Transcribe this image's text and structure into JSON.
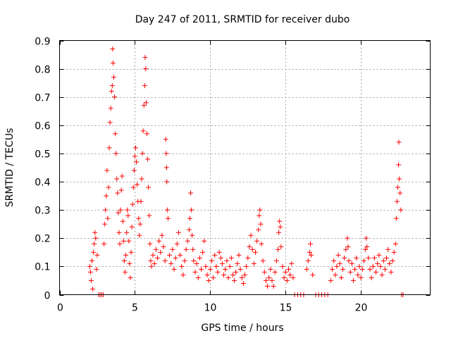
{
  "chart_data": {
    "type": "scatter",
    "title": "Day 247 of 2011, SRMTID for receiver dubo",
    "xlabel": "GPS time / hours",
    "ylabel": "SRMTID / TECUs",
    "xlim": [
      0,
      24.6
    ],
    "ylim": [
      0,
      0.9
    ],
    "x_ticks": [
      0,
      5,
      10,
      15,
      20
    ],
    "x_tick_labels": [
      "0",
      "5",
      "10",
      "15",
      "20"
    ],
    "y_ticks": [
      0,
      0.1,
      0.2,
      0.3,
      0.4,
      0.5,
      0.6,
      0.7,
      0.8,
      0.9
    ],
    "y_tick_labels": [
      "0",
      "0.1",
      "0.2",
      "0.3",
      "0.4",
      "0.5",
      "0.6",
      "0.7",
      "0.8",
      "0.9"
    ],
    "grid": true,
    "marker": "+",
    "color": "#ff0000",
    "series": [
      {
        "name": "SRMTID",
        "points": [
          [
            2.0,
            0.1
          ],
          [
            2.05,
            0.08
          ],
          [
            2.1,
            0.05
          ],
          [
            2.15,
            0.12
          ],
          [
            2.2,
            0.02
          ],
          [
            2.25,
            0.15
          ],
          [
            2.3,
            0.18
          ],
          [
            2.35,
            0.22
          ],
          [
            2.4,
            0.2
          ],
          [
            2.45,
            0.09
          ],
          [
            2.5,
            0.14
          ],
          [
            2.6,
            0.0
          ],
          [
            2.7,
            0.0
          ],
          [
            2.8,
            0.0
          ],
          [
            2.9,
            0.0
          ],
          [
            2.95,
            0.18
          ],
          [
            3.0,
            0.25
          ],
          [
            3.05,
            0.3
          ],
          [
            3.1,
            0.35
          ],
          [
            3.15,
            0.44
          ],
          [
            3.2,
            0.27
          ],
          [
            3.25,
            0.38
          ],
          [
            3.3,
            0.52
          ],
          [
            3.35,
            0.61
          ],
          [
            3.4,
            0.66
          ],
          [
            3.45,
            0.72
          ],
          [
            3.5,
            0.74
          ],
          [
            3.52,
            0.87
          ],
          [
            3.55,
            0.82
          ],
          [
            3.6,
            0.77
          ],
          [
            3.65,
            0.7
          ],
          [
            3.7,
            0.57
          ],
          [
            3.75,
            0.5
          ],
          [
            3.8,
            0.41
          ],
          [
            3.85,
            0.36
          ],
          [
            3.9,
            0.29
          ],
          [
            3.95,
            0.22
          ],
          [
            4.0,
            0.18
          ],
          [
            4.05,
            0.3
          ],
          [
            4.1,
            0.37
          ],
          [
            4.15,
            0.42
          ],
          [
            4.2,
            0.26
          ],
          [
            4.25,
            0.19
          ],
          [
            4.3,
            0.12
          ],
          [
            4.35,
            0.08
          ],
          [
            4.4,
            0.14
          ],
          [
            4.45,
            0.22
          ],
          [
            4.5,
            0.3
          ],
          [
            4.55,
            0.28
          ],
          [
            4.6,
            0.19
          ],
          [
            4.65,
            0.11
          ],
          [
            4.7,
            0.06
          ],
          [
            4.75,
            0.15
          ],
          [
            4.8,
            0.24
          ],
          [
            4.85,
            0.32
          ],
          [
            4.9,
            0.38
          ],
          [
            4.95,
            0.44
          ],
          [
            5.0,
            0.49
          ],
          [
            5.05,
            0.52
          ],
          [
            5.1,
            0.47
          ],
          [
            5.15,
            0.39
          ],
          [
            5.2,
            0.33
          ],
          [
            5.25,
            0.27
          ],
          [
            5.3,
            0.21
          ],
          [
            5.35,
            0.25
          ],
          [
            5.4,
            0.33
          ],
          [
            5.45,
            0.41
          ],
          [
            5.5,
            0.5
          ],
          [
            5.55,
            0.58
          ],
          [
            5.6,
            0.67
          ],
          [
            5.65,
            0.74
          ],
          [
            5.68,
            0.84
          ],
          [
            5.72,
            0.8
          ],
          [
            5.75,
            0.68
          ],
          [
            5.8,
            0.57
          ],
          [
            5.85,
            0.48
          ],
          [
            5.9,
            0.38
          ],
          [
            5.95,
            0.28
          ],
          [
            6.0,
            0.18
          ],
          [
            6.05,
            0.12
          ],
          [
            6.1,
            0.1
          ],
          [
            6.2,
            0.14
          ],
          [
            6.3,
            0.11
          ],
          [
            6.4,
            0.16
          ],
          [
            6.5,
            0.13
          ],
          [
            6.6,
            0.19
          ],
          [
            6.7,
            0.15
          ],
          [
            6.8,
            0.21
          ],
          [
            6.9,
            0.17
          ],
          [
            7.0,
            0.12
          ],
          [
            7.05,
            0.55
          ],
          [
            7.08,
            0.5
          ],
          [
            7.1,
            0.45
          ],
          [
            7.12,
            0.4
          ],
          [
            7.15,
            0.3
          ],
          [
            7.2,
            0.27
          ],
          [
            7.3,
            0.14
          ],
          [
            7.4,
            0.11
          ],
          [
            7.5,
            0.16
          ],
          [
            7.6,
            0.09
          ],
          [
            7.7,
            0.13
          ],
          [
            7.8,
            0.18
          ],
          [
            7.9,
            0.22
          ],
          [
            8.0,
            0.14
          ],
          [
            8.1,
            0.1
          ],
          [
            8.2,
            0.07
          ],
          [
            8.3,
            0.12
          ],
          [
            8.4,
            0.16
          ],
          [
            8.5,
            0.19
          ],
          [
            8.6,
            0.23
          ],
          [
            8.65,
            0.27
          ],
          [
            8.7,
            0.36
          ],
          [
            8.75,
            0.3
          ],
          [
            8.8,
            0.21
          ],
          [
            8.85,
            0.16
          ],
          [
            8.9,
            0.12
          ],
          [
            9.0,
            0.08
          ],
          [
            9.1,
            0.11
          ],
          [
            9.2,
            0.06
          ],
          [
            9.3,
            0.13
          ],
          [
            9.4,
            0.09
          ],
          [
            9.5,
            0.15
          ],
          [
            9.6,
            0.19
          ],
          [
            9.7,
            0.1
          ],
          [
            9.8,
            0.07
          ],
          [
            9.9,
            0.05
          ],
          [
            10.0,
            0.09
          ],
          [
            10.1,
            0.12
          ],
          [
            10.2,
            0.06
          ],
          [
            10.3,
            0.14
          ],
          [
            10.4,
            0.1
          ],
          [
            10.5,
            0.08
          ],
          [
            10.6,
            0.15
          ],
          [
            10.7,
            0.13
          ],
          [
            10.8,
            0.11
          ],
          [
            10.9,
            0.07
          ],
          [
            11.0,
            0.09
          ],
          [
            11.1,
            0.12
          ],
          [
            11.2,
            0.06
          ],
          [
            11.3,
            0.1
          ],
          [
            11.4,
            0.13
          ],
          [
            11.5,
            0.07
          ],
          [
            11.6,
            0.05
          ],
          [
            11.7,
            0.08
          ],
          [
            11.8,
            0.11
          ],
          [
            11.9,
            0.14
          ],
          [
            12.0,
            0.09
          ],
          [
            12.1,
            0.06
          ],
          [
            12.2,
            0.04
          ],
          [
            12.3,
            0.07
          ],
          [
            12.4,
            0.1
          ],
          [
            12.5,
            0.13
          ],
          [
            12.6,
            0.17
          ],
          [
            12.7,
            0.21
          ],
          [
            12.8,
            0.16
          ],
          [
            12.9,
            0.11
          ],
          [
            13.0,
            0.15
          ],
          [
            13.1,
            0.19
          ],
          [
            13.2,
            0.23
          ],
          [
            13.25,
            0.28
          ],
          [
            13.3,
            0.3
          ],
          [
            13.35,
            0.25
          ],
          [
            13.4,
            0.18
          ],
          [
            13.5,
            0.12
          ],
          [
            13.6,
            0.08
          ],
          [
            13.7,
            0.05
          ],
          [
            13.8,
            0.03
          ],
          [
            13.9,
            0.06
          ],
          [
            14.0,
            0.09
          ],
          [
            14.1,
            0.05
          ],
          [
            14.2,
            0.03
          ],
          [
            14.3,
            0.08
          ],
          [
            14.4,
            0.12
          ],
          [
            14.5,
            0.16
          ],
          [
            14.55,
            0.22
          ],
          [
            14.6,
            0.26
          ],
          [
            14.65,
            0.24
          ],
          [
            14.7,
            0.17
          ],
          [
            14.8,
            0.1
          ],
          [
            14.9,
            0.06
          ],
          [
            15.0,
            0.08
          ],
          [
            15.1,
            0.05
          ],
          [
            15.2,
            0.09
          ],
          [
            15.3,
            0.07
          ],
          [
            15.4,
            0.11
          ],
          [
            15.5,
            0.06
          ],
          [
            15.6,
            0.0
          ],
          [
            15.8,
            0.0
          ],
          [
            16.0,
            0.0
          ],
          [
            16.2,
            0.0
          ],
          [
            16.4,
            0.09
          ],
          [
            16.5,
            0.12
          ],
          [
            16.6,
            0.15
          ],
          [
            16.65,
            0.18
          ],
          [
            16.7,
            0.14
          ],
          [
            16.8,
            0.07
          ],
          [
            17.0,
            0.0
          ],
          [
            17.2,
            0.0
          ],
          [
            17.4,
            0.0
          ],
          [
            17.6,
            0.0
          ],
          [
            17.8,
            0.0
          ],
          [
            18.0,
            0.05
          ],
          [
            18.1,
            0.09
          ],
          [
            18.2,
            0.12
          ],
          [
            18.3,
            0.07
          ],
          [
            18.4,
            0.1
          ],
          [
            18.5,
            0.14
          ],
          [
            18.6,
            0.11
          ],
          [
            18.7,
            0.06
          ],
          [
            18.8,
            0.09
          ],
          [
            18.9,
            0.13
          ],
          [
            19.0,
            0.16
          ],
          [
            19.1,
            0.2
          ],
          [
            19.15,
            0.17
          ],
          [
            19.2,
            0.12
          ],
          [
            19.3,
            0.08
          ],
          [
            19.4,
            0.11
          ],
          [
            19.5,
            0.05
          ],
          [
            19.6,
            0.09
          ],
          [
            19.7,
            0.13
          ],
          [
            19.8,
            0.07
          ],
          [
            19.9,
            0.1
          ],
          [
            20.0,
            0.06
          ],
          [
            20.1,
            0.09
          ],
          [
            20.2,
            0.12
          ],
          [
            20.3,
            0.16
          ],
          [
            20.35,
            0.2
          ],
          [
            20.4,
            0.17
          ],
          [
            20.5,
            0.13
          ],
          [
            20.6,
            0.09
          ],
          [
            20.7,
            0.06
          ],
          [
            20.8,
            0.1
          ],
          [
            20.9,
            0.13
          ],
          [
            21.0,
            0.08
          ],
          [
            21.1,
            0.11
          ],
          [
            21.2,
            0.14
          ],
          [
            21.3,
            0.1
          ],
          [
            21.4,
            0.07
          ],
          [
            21.5,
            0.12
          ],
          [
            21.6,
            0.09
          ],
          [
            21.7,
            0.13
          ],
          [
            21.8,
            0.16
          ],
          [
            21.9,
            0.11
          ],
          [
            22.0,
            0.08
          ],
          [
            22.1,
            0.12
          ],
          [
            22.2,
            0.15
          ],
          [
            22.3,
            0.18
          ],
          [
            22.35,
            0.27
          ],
          [
            22.4,
            0.33
          ],
          [
            22.45,
            0.38
          ],
          [
            22.5,
            0.46
          ],
          [
            22.52,
            0.54
          ],
          [
            22.55,
            0.41
          ],
          [
            22.6,
            0.36
          ],
          [
            22.65,
            0.3
          ],
          [
            22.7,
            0.0
          ],
          [
            22.8,
            0.0
          ]
        ]
      }
    ]
  }
}
